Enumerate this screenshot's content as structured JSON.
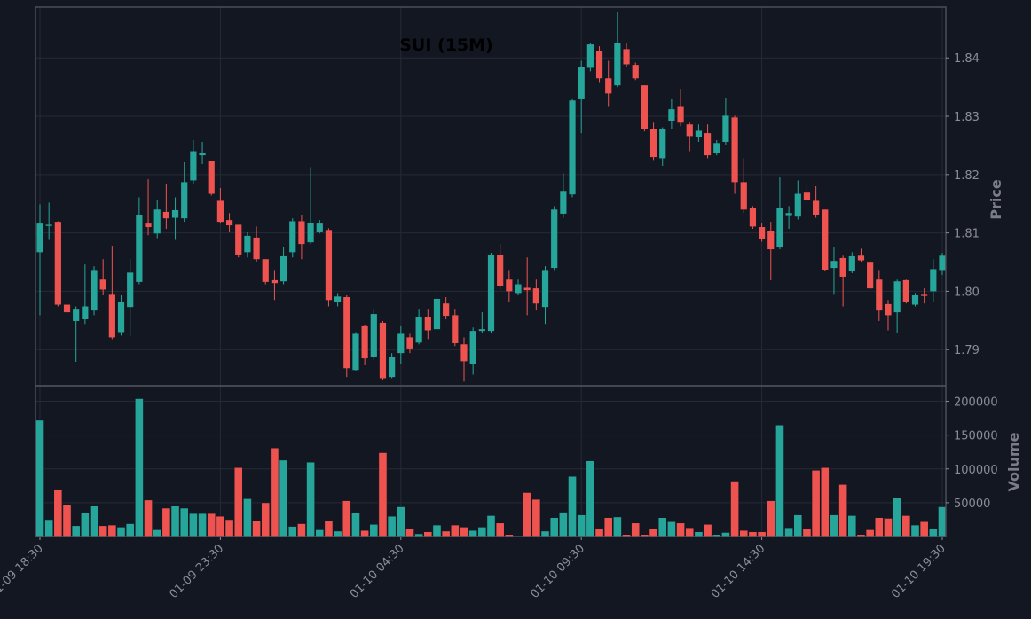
{
  "chart_data": {
    "type": "candlestick",
    "title": "SUI (15M)",
    "y_label": "Price",
    "y2_label": "Volume",
    "up_color": "#26a69a",
    "down_color": "#ef5350",
    "grid": true,
    "categories": [
      "01-09 18:30",
      null,
      null,
      null,
      null,
      null,
      null,
      null,
      null,
      null,
      null,
      null,
      null,
      null,
      null,
      null,
      null,
      null,
      null,
      null,
      "01-09 23:30",
      null,
      null,
      null,
      null,
      null,
      null,
      null,
      null,
      null,
      null,
      null,
      null,
      null,
      null,
      null,
      null,
      null,
      null,
      null,
      "01-10 04:30",
      null,
      null,
      null,
      null,
      null,
      null,
      null,
      null,
      null,
      null,
      null,
      null,
      null,
      null,
      null,
      null,
      null,
      null,
      null,
      "01-10 09:30",
      null,
      null,
      null,
      null,
      null,
      null,
      null,
      null,
      null,
      null,
      null,
      null,
      null,
      null,
      null,
      null,
      null,
      null,
      null,
      "01-10 14:30",
      null,
      null,
      null,
      null,
      null,
      null,
      null,
      null,
      null,
      null,
      null,
      null,
      null,
      null,
      null,
      null,
      null,
      null,
      null,
      "01-10 19:30"
    ],
    "open": [
      1.8067,
      1.8112,
      1.8119,
      1.7977,
      1.7949,
      1.7952,
      1.7967,
      1.802,
      1.7994,
      1.793,
      1.7973,
      1.8016,
      1.8116,
      1.8099,
      1.8136,
      1.8126,
      1.8125,
      1.819,
      1.8233,
      1.8224,
      1.8155,
      1.8122,
      1.8114,
      1.8067,
      1.8092,
      1.8055,
      1.8019,
      1.8017,
      1.8067,
      1.812,
      1.8084,
      1.8101,
      1.8105,
      1.7982,
      1.799,
      1.7865,
      1.794,
      1.7888,
      1.7946,
      1.7853,
      1.7894,
      1.7921,
      1.7912,
      1.7956,
      1.7935,
      1.7979,
      1.7959,
      1.7909,
      1.7876,
      1.7932,
      1.7932,
      1.8063,
      1.802,
      1.7997,
      1.8006,
      1.8005,
      1.7973,
      1.804,
      1.8133,
      1.8166,
      1.8329,
      1.8383,
      1.8411,
      1.8365,
      1.8353,
      1.8415,
      1.8388,
      1.8353,
      1.8278,
      1.8228,
      1.8291,
      1.8316,
      1.8286,
      1.8265,
      1.8271,
      1.8237,
      1.8256,
      1.8298,
      1.8187,
      1.8142,
      1.811,
      1.8104,
      1.8075,
      1.8129,
      1.8128,
      1.8169,
      1.8155,
      1.814,
      1.804,
      1.8057,
      1.8034,
      1.8061,
      1.8049,
      1.802,
      1.7978,
      1.7964,
      1.8019,
      1.7977,
      1.7994,
      1.8,
      1.8035
    ],
    "high": [
      1.8149,
      1.8152,
      1.812,
      1.7982,
      1.7974,
      1.8046,
      1.8043,
      1.8055,
      1.8078,
      1.7993,
      1.8055,
      1.8161,
      1.8192,
      1.8157,
      1.8183,
      1.8161,
      1.8221,
      1.8259,
      1.8256,
      1.8224,
      1.8177,
      1.8134,
      1.8114,
      1.8101,
      1.8111,
      1.8055,
      1.8035,
      1.8076,
      1.8125,
      1.8131,
      1.8213,
      1.8122,
      1.8108,
      1.7997,
      1.7993,
      1.793,
      1.7943,
      1.797,
      1.7949,
      1.7894,
      1.794,
      1.7927,
      1.797,
      1.797,
      1.8005,
      1.799,
      1.797,
      1.7921,
      1.7938,
      1.7964,
      1.8066,
      1.8081,
      1.8035,
      1.802,
      1.8058,
      1.802,
      1.8043,
      1.8146,
      1.8202,
      1.8329,
      1.8395,
      1.8426,
      1.842,
      1.8395,
      1.8479,
      1.8426,
      1.8392,
      1.8353,
      1.8289,
      1.8281,
      1.8329,
      1.8347,
      1.8289,
      1.8286,
      1.8286,
      1.8259,
      1.8332,
      1.8301,
      1.8228,
      1.8146,
      1.8116,
      1.8119,
      1.8195,
      1.8146,
      1.819,
      1.818,
      1.818,
      1.814,
      1.8076,
      1.8061,
      1.8067,
      1.8073,
      1.8052,
      1.8035,
      1.7985,
      1.802,
      1.802,
      1.7997,
      1.8005,
      1.8055,
      1.8066
    ],
    "low": [
      1.7959,
      1.8088,
      1.7974,
      1.7876,
      1.7879,
      1.7944,
      1.7959,
      1.7993,
      1.7918,
      1.7924,
      1.7924,
      1.8012,
      1.8096,
      1.8091,
      1.8107,
      1.8088,
      1.8119,
      1.8184,
      1.8218,
      1.8164,
      1.8116,
      1.8101,
      1.8058,
      1.8058,
      1.805,
      1.8012,
      1.7985,
      1.8012,
      1.8058,
      1.8055,
      1.8081,
      1.8099,
      1.7974,
      1.7974,
      1.7853,
      1.7864,
      1.7873,
      1.7883,
      1.7848,
      1.7851,
      1.7876,
      1.7894,
      1.7909,
      1.7918,
      1.7932,
      1.7952,
      1.7906,
      1.7845,
      1.7857,
      1.7929,
      1.7929,
      1.8003,
      1.7982,
      1.7993,
      1.7959,
      1.7967,
      1.7944,
      1.8035,
      1.8126,
      1.8161,
      1.8271,
      1.8377,
      1.8357,
      1.8316,
      1.835,
      1.8385,
      1.8362,
      1.8274,
      1.8225,
      1.8215,
      1.8278,
      1.8283,
      1.824,
      1.8256,
      1.8228,
      1.8233,
      1.8251,
      1.8167,
      1.8134,
      1.8107,
      1.8085,
      1.8019,
      1.8072,
      1.8107,
      1.8123,
      1.8152,
      1.8126,
      1.8034,
      1.7994,
      1.7974,
      1.8031,
      1.805,
      1.8002,
      1.7949,
      1.7933,
      1.7929,
      1.7979,
      1.7974,
      1.7979,
      1.7982,
      1.8028
    ],
    "close": [
      1.8116,
      1.8114,
      1.7977,
      1.7964,
      1.797,
      1.7974,
      1.8035,
      1.8003,
      1.7921,
      1.7982,
      1.8032,
      1.813,
      1.811,
      1.814,
      1.8125,
      1.8139,
      1.8187,
      1.824,
      1.8237,
      1.8167,
      1.8119,
      1.8113,
      1.8063,
      1.8095,
      1.8055,
      1.8016,
      1.8014,
      1.806,
      1.812,
      1.8081,
      1.8117,
      1.8116,
      1.7985,
      1.7991,
      1.7868,
      1.7927,
      1.7885,
      1.7961,
      1.7851,
      1.7888,
      1.7927,
      1.7902,
      1.7955,
      1.7933,
      1.7987,
      1.7958,
      1.7911,
      1.788,
      1.7932,
      1.7935,
      1.8063,
      1.8009,
      1.8,
      1.8012,
      1.8002,
      1.7979,
      1.8035,
      1.814,
      1.8172,
      1.8327,
      1.8385,
      1.8423,
      1.8365,
      1.8339,
      1.8426,
      1.8389,
      1.8365,
      1.8278,
      1.823,
      1.8278,
      1.8312,
      1.8289,
      1.8266,
      1.8275,
      1.8233,
      1.8254,
      1.8301,
      1.8187,
      1.814,
      1.8111,
      1.809,
      1.8072,
      1.8142,
      1.8134,
      1.8167,
      1.8157,
      1.8131,
      1.8037,
      1.8052,
      1.8025,
      1.806,
      1.8053,
      1.8005,
      1.7967,
      1.7959,
      1.8017,
      1.7982,
      1.7993,
      1.7992,
      1.8038,
      1.8061
    ],
    "volume": [
      172000,
      25000,
      70000,
      47000,
      16000,
      35000,
      45000,
      16000,
      17000,
      14000,
      19000,
      204000,
      54000,
      10000,
      42000,
      45000,
      42000,
      34000,
      34000,
      34000,
      30000,
      25000,
      102000,
      56000,
      24000,
      50000,
      131000,
      113000,
      15000,
      19000,
      110000,
      10000,
      23000,
      8000,
      53000,
      35000,
      9000,
      18000,
      124000,
      30000,
      44000,
      12000,
      4000,
      7000,
      17000,
      8000,
      17000,
      14000,
      9000,
      14000,
      31000,
      20000,
      3000,
      1000,
      65000,
      55000,
      8000,
      28000,
      36000,
      89000,
      32000,
      112000,
      12000,
      28000,
      29000,
      3000,
      20000,
      3000,
      12000,
      28000,
      22000,
      20000,
      13000,
      7000,
      18000,
      3000,
      6000,
      82000,
      9000,
      7000,
      7000,
      53000,
      165000,
      13000,
      32000,
      11000,
      98000,
      102000,
      32000,
      77000,
      31000,
      3000,
      10000,
      28000,
      27000,
      57000,
      31000,
      17000,
      22000,
      12000,
      44000
    ],
    "ylim": [
      1.7838,
      1.8487
    ],
    "yticks": [
      1.79,
      {
        "value": 1.8,
        "label": "1.80"
      },
      1.81,
      1.82,
      1.83,
      1.84
    ],
    "y2lim": [
      0,
      223000
    ],
    "y2ticks": [
      50000,
      100000,
      150000,
      200000
    ]
  }
}
